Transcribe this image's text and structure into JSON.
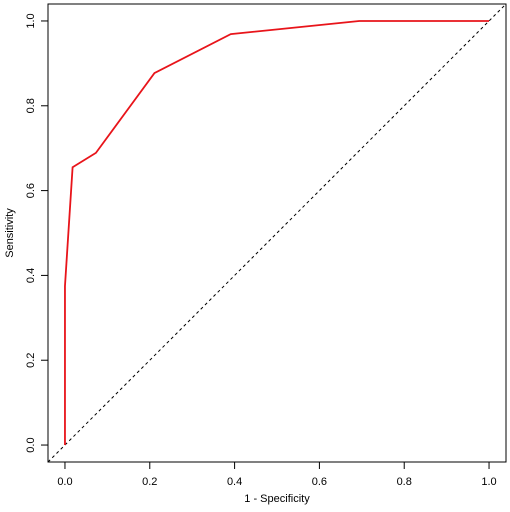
{
  "chart_data": {
    "type": "line",
    "xlabel": "1 - Specificity",
    "ylabel": "Sensitivity",
    "x": [
      0,
      0,
      0.018,
      0.073,
      0.211,
      0.391,
      0.694,
      1.0
    ],
    "values": [
      0,
      0.375,
      0.655,
      0.689,
      0.877,
      0.969,
      1.0,
      1.0
    ],
    "color": "#e8141a",
    "xlim": [
      -0.04,
      1.04
    ],
    "ylim": [
      -0.04,
      1.04
    ],
    "xticks": [
      {
        "value": 0,
        "label": "0.0"
      },
      0.2,
      0.4,
      0.6,
      0.8,
      {
        "value": 1,
        "label": "1.0"
      }
    ],
    "yticks": [
      {
        "value": 0,
        "label": "0.0"
      },
      0.2,
      0.4,
      0.6,
      0.8,
      {
        "value": 1,
        "label": "1.0"
      }
    ],
    "diagonal": true
  }
}
